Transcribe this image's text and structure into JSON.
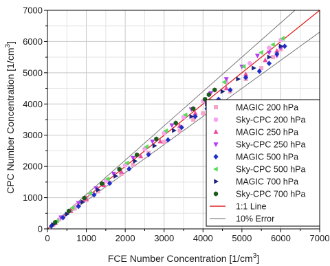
{
  "chart_data": {
    "type": "scatter",
    "xlabel": "FCE Number Concentration [1/cm",
    "xlabel_sup": "3",
    "xlabel_end": "]",
    "ylabel": "CPC Number Concentration [1/cm",
    "ylabel_sup": "3",
    "ylabel_end": "]",
    "xlim": [
      0,
      7000
    ],
    "ylim": [
      0,
      7000
    ],
    "xticks": [
      "0",
      "1000",
      "2000",
      "3000",
      "4000",
      "5000",
      "6000",
      "7000"
    ],
    "yticks": [
      "0",
      "1000",
      "2000",
      "3000",
      "4000",
      "5000",
      "6000",
      "7000"
    ],
    "grid": true,
    "legend_position": "bottom-right",
    "series": [
      {
        "name": "MAGIC 200 hPa",
        "marker": "square",
        "color": "#f4a6c8",
        "points": [
          [
            150,
            130
          ],
          [
            400,
            370
          ],
          [
            700,
            650
          ],
          [
            1000,
            920
          ],
          [
            1300,
            1200
          ],
          [
            1600,
            1480
          ],
          [
            1900,
            1760
          ],
          [
            2200,
            2050
          ],
          [
            2600,
            2430
          ],
          [
            3000,
            2780
          ],
          [
            3400,
            3150
          ],
          [
            3750,
            3500
          ],
          [
            4000,
            3700
          ],
          [
            4300,
            4000
          ],
          [
            4700,
            4400
          ],
          [
            5100,
            4800
          ],
          [
            5500,
            5150
          ],
          [
            5800,
            5500
          ],
          [
            6000,
            5750
          ]
        ]
      },
      {
        "name": "Sky-CPC 200 hPa",
        "marker": "circle",
        "color": "#f7a1f0",
        "points": [
          [
            300,
            300
          ],
          [
            700,
            720
          ],
          [
            1100,
            1130
          ],
          [
            1500,
            1540
          ],
          [
            2000,
            2040
          ],
          [
            2500,
            2560
          ],
          [
            3000,
            3070
          ],
          [
            3500,
            3580
          ],
          [
            4000,
            4090
          ],
          [
            4600,
            4700
          ],
          [
            5200,
            5300
          ],
          [
            5700,
            5800
          ],
          [
            6000,
            6050
          ]
        ]
      },
      {
        "name": "MAGIC 250 hPa",
        "marker": "triangle-up",
        "color": "#ec4a9f",
        "points": [
          [
            200,
            190
          ],
          [
            600,
            570
          ],
          [
            1000,
            960
          ],
          [
            1450,
            1400
          ],
          [
            1900,
            1830
          ],
          [
            2400,
            2320
          ],
          [
            2900,
            2800
          ],
          [
            3400,
            3300
          ],
          [
            3800,
            3700
          ],
          [
            4200,
            4100
          ],
          [
            4600,
            4500
          ],
          [
            5100,
            4950
          ],
          [
            5600,
            5400
          ],
          [
            5900,
            5700
          ]
        ]
      },
      {
        "name": "Sky-CPC 250 hPa",
        "marker": "triangle-down",
        "color": "#b43cf0",
        "points": [
          [
            350,
            370
          ],
          [
            800,
            830
          ],
          [
            1250,
            1300
          ],
          [
            1700,
            1770
          ],
          [
            2200,
            2280
          ],
          [
            2700,
            2800
          ],
          [
            3200,
            3320
          ],
          [
            3700,
            3830
          ],
          [
            4200,
            4350
          ],
          [
            4600,
            4800
          ],
          [
            5000,
            5200
          ],
          [
            5400,
            5550
          ],
          [
            5700,
            5650
          ],
          [
            5900,
            5550
          ],
          [
            6000,
            5800
          ]
        ]
      },
      {
        "name": "MAGIC 500 hPa",
        "marker": "diamond",
        "color": "#1f2fc7",
        "points": [
          [
            100,
            90
          ],
          [
            400,
            360
          ],
          [
            800,
            720
          ],
          [
            1200,
            1090
          ],
          [
            1600,
            1460
          ],
          [
            2100,
            1920
          ],
          [
            2600,
            2380
          ],
          [
            3100,
            2850
          ],
          [
            3450,
            3250
          ],
          [
            3800,
            3600
          ],
          [
            4100,
            3850
          ],
          [
            4400,
            4150
          ],
          [
            4700,
            4450
          ],
          [
            5100,
            4850
          ],
          [
            5450,
            5050
          ],
          [
            5700,
            5300
          ],
          [
            5900,
            5600
          ],
          [
            6100,
            5850
          ]
        ]
      },
      {
        "name": "Sky-CPC 500 hPa",
        "marker": "triangle-left",
        "color": "#57dd57",
        "points": [
          [
            250,
            260
          ],
          [
            650,
            680
          ],
          [
            1100,
            1140
          ],
          [
            1550,
            1600
          ],
          [
            2050,
            2110
          ],
          [
            2550,
            2630
          ],
          [
            3050,
            3140
          ],
          [
            3550,
            3650
          ],
          [
            4050,
            4150
          ],
          [
            4550,
            4700
          ],
          [
            5050,
            5200
          ],
          [
            5500,
            5650
          ],
          [
            5800,
            5900
          ],
          [
            6050,
            6100
          ]
        ]
      },
      {
        "name": "MAGIC 700 hPa",
        "marker": "triangle-right",
        "color": "#1a237e",
        "points": [
          [
            150,
            140
          ],
          [
            500,
            470
          ],
          [
            900,
            860
          ],
          [
            1300,
            1250
          ],
          [
            1750,
            1690
          ],
          [
            2250,
            2170
          ],
          [
            2750,
            2660
          ],
          [
            3250,
            3150
          ],
          [
            3700,
            3600
          ],
          [
            4100,
            4000
          ],
          [
            4500,
            4400
          ],
          [
            4900,
            4800
          ],
          [
            5300,
            5150
          ],
          [
            5700,
            5500
          ],
          [
            6000,
            5850
          ]
        ]
      },
      {
        "name": "Sky-CPC 700 hPa",
        "marker": "hexagon",
        "color": "#1d5a1d",
        "points": [
          [
            200,
            210
          ],
          [
            550,
            570
          ],
          [
            950,
            990
          ],
          [
            1400,
            1450
          ],
          [
            1850,
            1910
          ],
          [
            2300,
            2370
          ],
          [
            2800,
            2880
          ],
          [
            3300,
            3390
          ],
          [
            3750,
            3850
          ],
          [
            4050,
            4150
          ],
          [
            4150,
            4300
          ],
          [
            4300,
            4450
          ]
        ]
      }
    ],
    "lines": [
      {
        "name": "1:1 Line",
        "color": "#e02020",
        "slope": 1.0
      },
      {
        "name": "10% Error",
        "color": "#6a6a6a",
        "slopes": [
          1.1,
          0.9
        ]
      }
    ]
  }
}
